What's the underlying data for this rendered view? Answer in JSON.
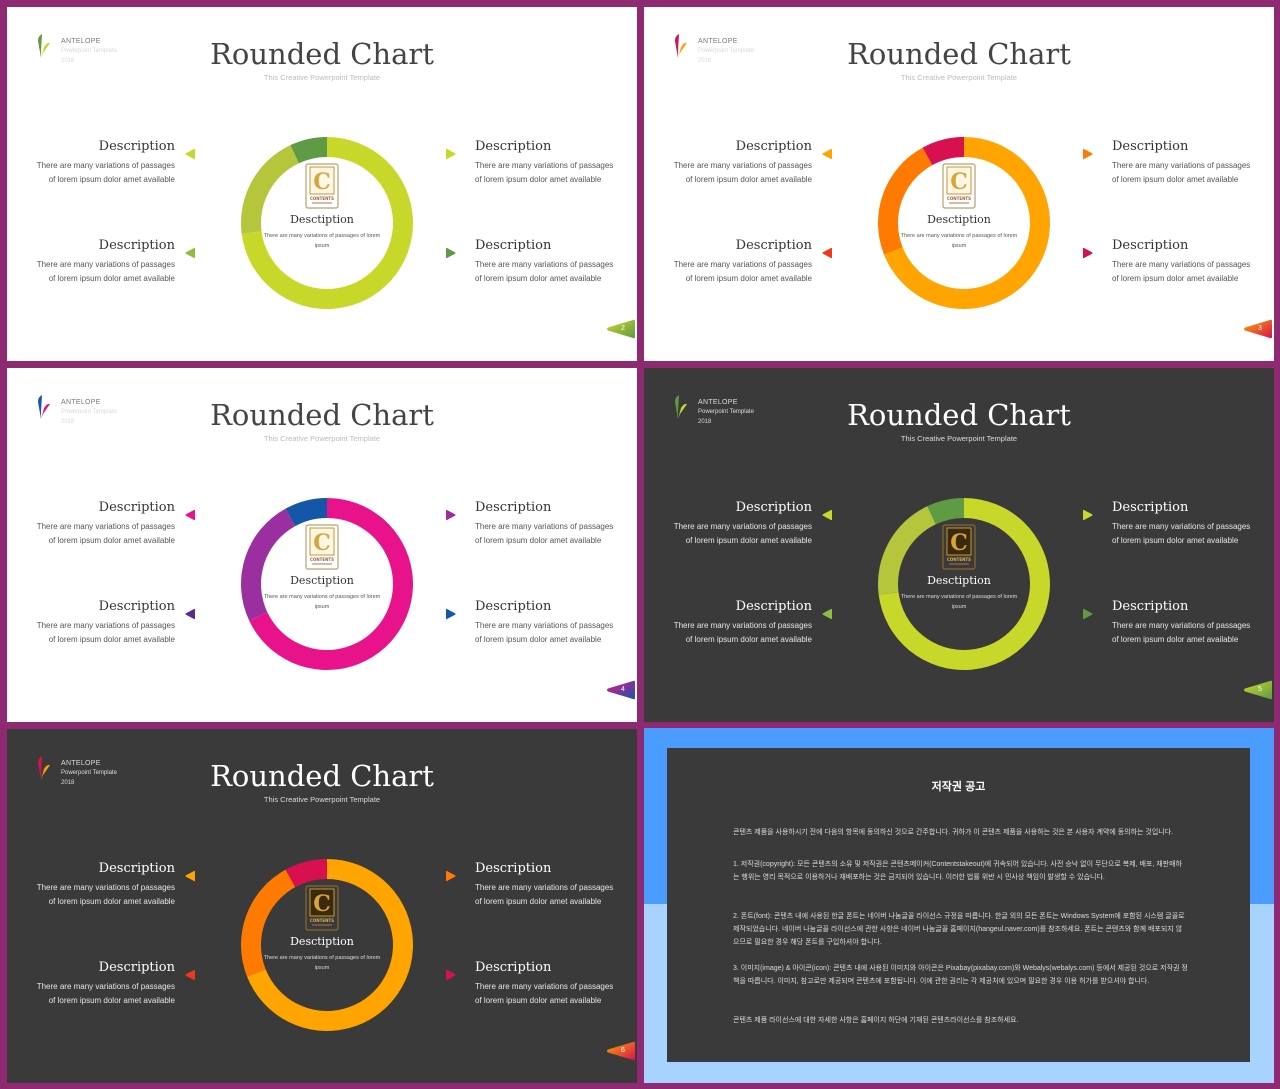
{
  "slides": [
    {
      "page_number": "2",
      "theme": "light",
      "colors": [
        "#c8d82a",
        "#b5c63c",
        "#5f9a45"
      ],
      "chart_data": {
        "type": "pie",
        "variant": "donut",
        "values": [
          73,
          20,
          7
        ]
      },
      "arrows": [
        "#c8d82a",
        "#8fbe3f",
        "#c8d82a",
        "#5f9a45"
      ]
    },
    {
      "page_number": "3",
      "theme": "light",
      "colors": [
        "#ffa400",
        "#ff7a00",
        "#d8104f"
      ],
      "chart_data": {
        "type": "pie",
        "variant": "donut",
        "values": [
          69,
          23,
          8
        ]
      },
      "arrows": [
        "#ffa400",
        "#ee3a1a",
        "#ff7a00",
        "#d8104f"
      ]
    },
    {
      "page_number": "4",
      "theme": "light",
      "colors": [
        "#e8128a",
        "#9c2fa0",
        "#1457a8"
      ],
      "chart_data": {
        "type": "pie",
        "variant": "donut",
        "values": [
          68,
          24,
          8
        ]
      },
      "arrows": [
        "#e8128a",
        "#5b2a8f",
        "#9c2fa0",
        "#1457a8"
      ]
    },
    {
      "page_number": "5",
      "theme": "dark",
      "colors": [
        "#c8d82a",
        "#b5c63c",
        "#5f9a45"
      ],
      "chart_data": {
        "type": "pie",
        "variant": "donut",
        "values": [
          73,
          20,
          7
        ]
      },
      "arrows": [
        "#c8d82a",
        "#8fbe3f",
        "#c8d82a",
        "#5f9a45"
      ]
    },
    {
      "page_number": "6",
      "theme": "dark",
      "colors": [
        "#ffa400",
        "#ff7a00",
        "#d8104f"
      ],
      "chart_data": {
        "type": "pie",
        "variant": "donut",
        "values": [
          69,
          23,
          8
        ]
      },
      "arrows": [
        "#ffa400",
        "#ee3a1a",
        "#ff7a00",
        "#d8104f"
      ]
    }
  ],
  "content": {
    "brand": "ANTELOPE",
    "brand_sub": "Powerpoint Template",
    "brand_year": "2018",
    "title": "Rounded Chart",
    "subtitle": "This Creative Powerpoint Template",
    "center_title": "Desctiption",
    "center_text": "There are many variations of passages of lorem ipsum",
    "desc_heading": "Description",
    "desc_text": "There are many variations of passages of lorem ipsum dolor amet available",
    "icon_letter": "C",
    "icon_caption": "CONTENTS"
  },
  "notice": {
    "title": "저작권 공고",
    "paragraphs": [
      "콘텐츠 제품을 사용하시기 전에 다음의 항목에 동의하신 것으로 간주합니다. 귀하가 이 콘텐츠 제품을 사용하는 것은 본 사용자 계약에 동의하는 것입니다.",
      "1. 저작권(copyright): 모든 콘텐츠의 소유 및 저작권은 콘텐츠메이커(Contentstakeout)에 귀속되어 있습니다. 사전 승낙 없이 무단으로 복제, 배포, 재판매하는 행위는 영리 목적으로 이용하거나 재배포하는 것은 금지되어 있습니다. 이러한 법률 위반 시 민사상 책임이 발생할 수 있습니다.",
      "2. 폰트(font): 콘텐츠 내에 사용된 한글 폰트는 네이버 나눔글꼴 라이선스 규정을 따릅니다. 한글 외의 모든 폰트는 Windows System에 포함된 시스템 글꼴로 제작되었습니다. 네이버 나눔글꼴 라이선스에 관한 사항은 네이버 나눔글꼴 홈페이지(hangeul.naver.com)를 참조하세요. 폰트는 콘텐츠와 함께 배포되지 않으므로 필요한 경우 해당 폰트를 구입하셔야 합니다.",
      "3. 이미지(image) & 아이콘(icon): 콘텐츠 내에 사용된 이미지와 아이콘은 Pixabay(pixabay.com)와 Webalys(webalys.com) 등에서 제공된 것으로 저작권 정책을 따릅니다. 이미지, 참고로만 제공되며 콘텐츠에 포함됩니다. 이에 관한 권리는 각 제공처에 있으며 필요한 경우 이용 허가를 받으셔야 합니다.",
      "콘텐츠 제품 라이선스에 대한 자세한 사항은 홈페이지 하단에 기재된 콘텐츠라이선스를 참조하세요."
    ]
  }
}
